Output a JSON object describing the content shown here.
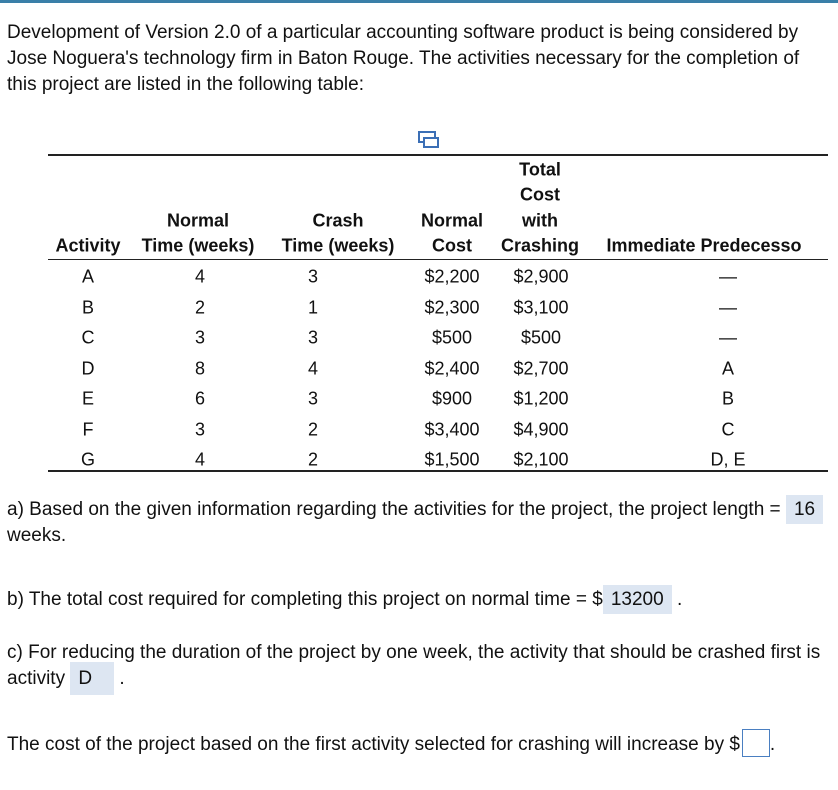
{
  "intro": "Development of Version 2.0 of a particular accounting software product is being considered by Jose Noguera's technology firm in Baton Rouge. The activities necessary for the completion of this project are listed in the following table:",
  "table": {
    "columns": [
      [
        "Activity"
      ],
      [
        "Normal",
        "Time (weeks)"
      ],
      [
        "Crash",
        "Time (weeks)"
      ],
      [
        "Normal",
        "Cost"
      ],
      [
        "Total",
        "Cost",
        "with",
        "Crashing"
      ],
      [
        "Immediate Predecesso"
      ]
    ],
    "rows": [
      [
        "A",
        "4",
        "3",
        "$2,200",
        "$2,900",
        "—"
      ],
      [
        "B",
        "2",
        "1",
        "$2,300",
        "$3,100",
        "—"
      ],
      [
        "C",
        "3",
        "3",
        "$500",
        "$500",
        "—"
      ],
      [
        "D",
        "8",
        "4",
        "$2,400",
        "$2,700",
        "A"
      ],
      [
        "E",
        "6",
        "3",
        "$900",
        "$1,200",
        "B"
      ],
      [
        "F",
        "3",
        "2",
        "$3,400",
        "$4,900",
        "C"
      ],
      [
        "G",
        "4",
        "2",
        "$1,500",
        "$2,100",
        "D, E"
      ]
    ]
  },
  "questions": [
    {
      "text": "a) Based on the given information regarding the activities for the project, the project length =",
      "answer": "16",
      "after": "weeks."
    },
    {
      "text": "b) The total cost required for completing this project on normal time = $",
      "answer": "13200",
      "after": "."
    },
    {
      "text": "c) For reducing the duration of the project by one week, the activity that should be crashed first is activity",
      "answer": "D",
      "after": "."
    },
    {
      "text": "The cost of the project based on the first activity selected for crashing will increase by $",
      "after": "."
    }
  ]
}
